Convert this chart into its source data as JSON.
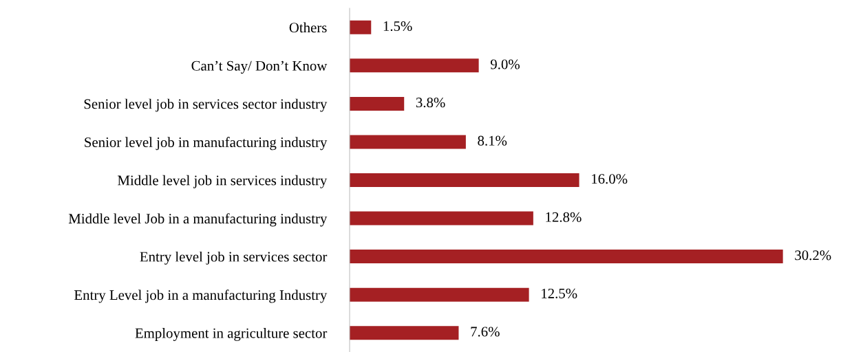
{
  "chart_data": {
    "type": "bar",
    "orientation": "horizontal",
    "categories": [
      "Others",
      "Can’t Say/ Don’t Know",
      "Senior level job in services sector industry",
      "Senior level job in manufacturing industry",
      "Middle level job in services industry",
      "Middle level Job in a manufacturing industry",
      "Entry level job in services sector",
      "Entry Level job in a manufacturing Industry",
      "Employment in agriculture sector"
    ],
    "values": [
      1.5,
      9.0,
      3.8,
      8.1,
      16.0,
      12.8,
      30.2,
      12.5,
      7.6
    ],
    "value_labels": [
      "1.5%",
      "9.0%",
      "3.8%",
      "8.1%",
      "16.0%",
      "12.8%",
      "30.2%",
      "12.5%",
      "7.6%"
    ],
    "color": "#a52023",
    "tick_labels": "y",
    "grid": false,
    "legend": false
  }
}
